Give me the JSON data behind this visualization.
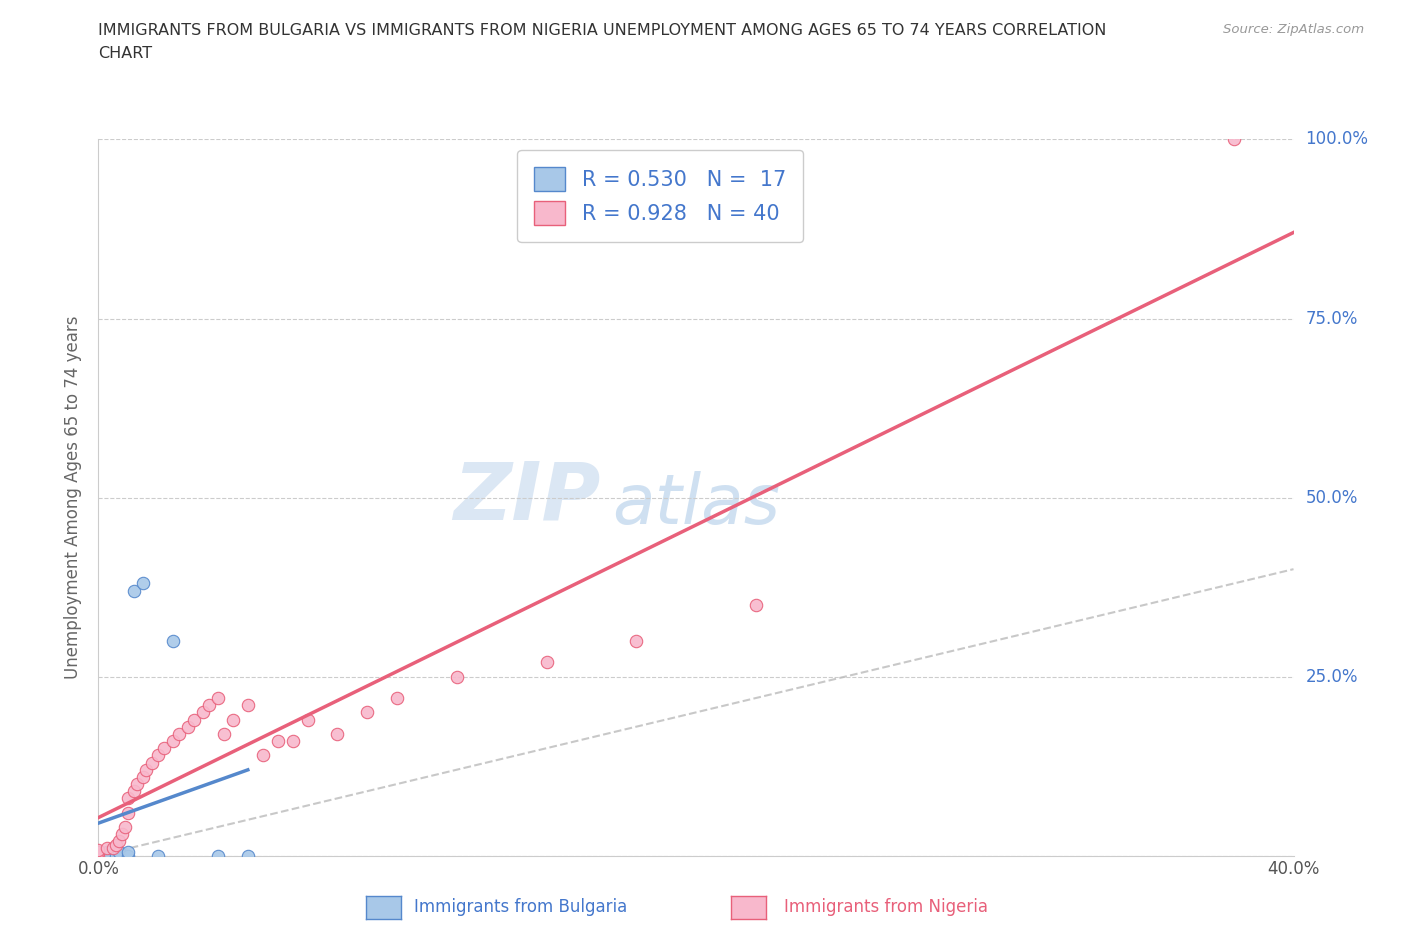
{
  "title_line1": "IMMIGRANTS FROM BULGARIA VS IMMIGRANTS FROM NIGERIA UNEMPLOYMENT AMONG AGES 65 TO 74 YEARS CORRELATION",
  "title_line2": "CHART",
  "source_text": "Source: ZipAtlas.com",
  "ylabel": "Unemployment Among Ages 65 to 74 years",
  "xlabel_legend1": "Immigrants from Bulgaria",
  "xlabel_legend2": "Immigrants from Nigeria",
  "watermark_zip": "ZIP",
  "watermark_atlas": "atlas",
  "legend_R1": "R = 0.530",
  "legend_N1": "N =  17",
  "legend_R2": "R = 0.928",
  "legend_N2": "N = 40",
  "xlim": [
    0.0,
    0.4
  ],
  "ylim": [
    0.0,
    1.0
  ],
  "xticks": [
    0.0,
    0.1,
    0.2,
    0.3,
    0.4
  ],
  "xticklabels": [
    "0.0%",
    "",
    "",
    "",
    "40.0%"
  ],
  "yticks": [
    0.0,
    0.25,
    0.5,
    0.75,
    1.0
  ],
  "yticklabels": [
    "0.0%",
    "25.0%",
    "50.0%",
    "75.0%",
    "100.0%"
  ],
  "color_bulgaria": "#a8c8e8",
  "color_nigeria": "#f8b8cc",
  "color_line_bulgaria": "#5588cc",
  "color_line_nigeria": "#e8607a",
  "color_ref_line": "#bbbbbb",
  "bg_color": "#ffffff",
  "grid_color": "#cccccc",
  "title_color": "#333333",
  "label_color": "#4477cc",
  "bulgaria_x": [
    0.0,
    0.0,
    0.0,
    0.0,
    0.0,
    0.003,
    0.003,
    0.006,
    0.007,
    0.01,
    0.01,
    0.012,
    0.015,
    0.02,
    0.025,
    0.04,
    0.05
  ],
  "bulgaria_y": [
    0.0,
    0.0,
    0.0,
    0.0,
    0.005,
    0.0,
    0.005,
    0.0,
    0.005,
    0.0,
    0.005,
    0.37,
    0.38,
    0.0,
    0.3,
    0.0,
    0.0
  ],
  "nigeria_x": [
    0.0,
    0.0,
    0.0,
    0.003,
    0.005,
    0.006,
    0.007,
    0.008,
    0.009,
    0.01,
    0.01,
    0.012,
    0.013,
    0.015,
    0.016,
    0.018,
    0.02,
    0.022,
    0.025,
    0.027,
    0.03,
    0.032,
    0.035,
    0.037,
    0.04,
    0.042,
    0.045,
    0.05,
    0.055,
    0.06,
    0.065,
    0.07,
    0.08,
    0.09,
    0.1,
    0.12,
    0.15,
    0.18,
    0.22,
    0.38
  ],
  "nigeria_y": [
    0.0,
    0.005,
    0.008,
    0.01,
    0.01,
    0.015,
    0.02,
    0.03,
    0.04,
    0.06,
    0.08,
    0.09,
    0.1,
    0.11,
    0.12,
    0.13,
    0.14,
    0.15,
    0.16,
    0.17,
    0.18,
    0.19,
    0.2,
    0.21,
    0.22,
    0.17,
    0.19,
    0.21,
    0.14,
    0.16,
    0.16,
    0.19,
    0.17,
    0.2,
    0.22,
    0.25,
    0.27,
    0.3,
    0.35,
    1.0
  ]
}
